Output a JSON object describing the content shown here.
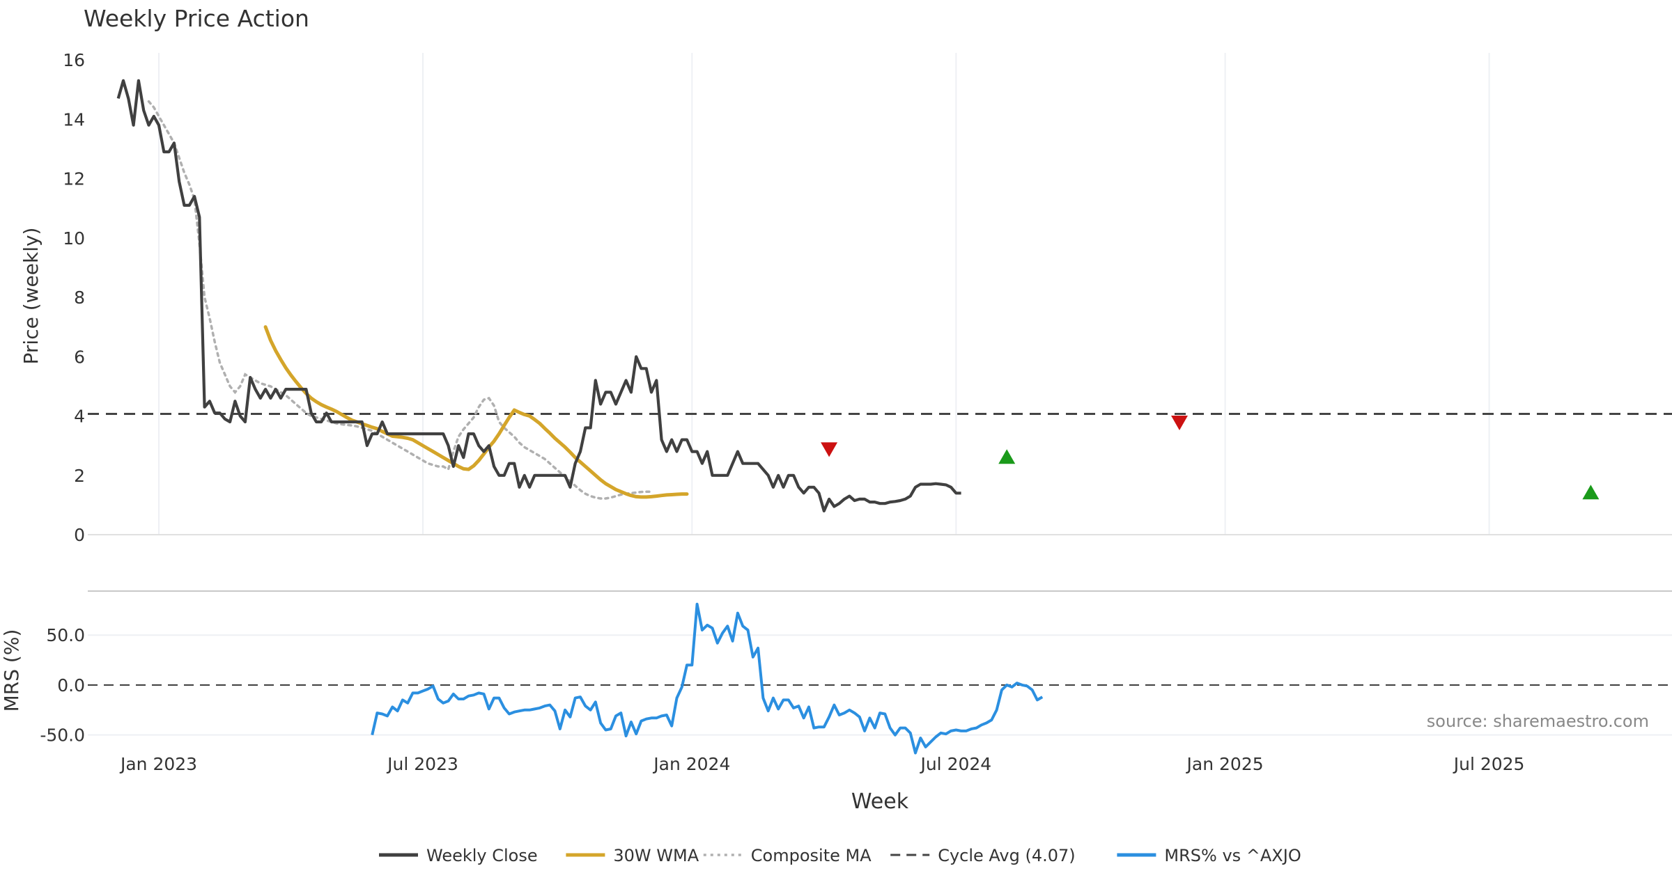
{
  "chart_data": {
    "type": "line",
    "title": "Weekly Price Action",
    "xlabel": "Week",
    "source_note": "source: sharemaestro.com",
    "x_ticks": [
      "Jan 2023",
      "Jul 2023",
      "Jan 2024",
      "Jul 2024",
      "Jan 2025",
      "Jul 2025"
    ],
    "x_tick_weeks": [
      8,
      60,
      113,
      165,
      218,
      270
    ],
    "week_range": [
      -6,
      306
    ],
    "colors": {
      "close": "#404040",
      "wma": "#d4a52a",
      "composite": "#b0b0b0",
      "cycle": "#444444",
      "mrs": "#2b8fe0",
      "buy": "#1a9a1a",
      "sell": "#cc1111",
      "source": "#888888"
    },
    "price_panel": {
      "ylabel": "Price (weekly)",
      "ylim": [
        0,
        16
      ],
      "yticks": [
        "0",
        "2",
        "4",
        "6",
        "8",
        "10",
        "12",
        "14",
        "16"
      ],
      "series": [
        {
          "name": "Weekly Close",
          "values": [
            14.7,
            15.3,
            14.7,
            13.8,
            15.3,
            14.3,
            13.8,
            14.1,
            13.8,
            12.9,
            12.9,
            13.2,
            11.9,
            11.1,
            11.1,
            11.4,
            10.7,
            4.3,
            4.5,
            4.1,
            4.1,
            3.9,
            3.8,
            4.5,
            4.0,
            3.8,
            5.3,
            4.9,
            4.6,
            4.9,
            4.6,
            4.9,
            4.6,
            4.9,
            4.9,
            4.9,
            4.9,
            4.9,
            4.1,
            3.8,
            3.8,
            4.1,
            3.8,
            3.8,
            3.8,
            3.8,
            3.8,
            3.8,
            3.8,
            3.0,
            3.4,
            3.4,
            3.8,
            3.4,
            3.4,
            3.4,
            3.4,
            3.4,
            3.4,
            3.4,
            3.4,
            3.4,
            3.4,
            3.4,
            3.4,
            3.0,
            2.3,
            3.0,
            2.6,
            3.4,
            3.4,
            3.0,
            2.8,
            3.0,
            2.3,
            2.0,
            2.0,
            2.4,
            2.4,
            1.6,
            2.0,
            1.6,
            2.0,
            2.0,
            2.0,
            2.0,
            2.0,
            2.0,
            2.0,
            1.6,
            2.4,
            2.8,
            3.6,
            3.6,
            5.2,
            4.4,
            4.8,
            4.8,
            4.4,
            4.8,
            5.2,
            4.8,
            6.0,
            5.6,
            5.6,
            4.8,
            5.2,
            3.2,
            2.8,
            3.2,
            2.8,
            3.2,
            3.2,
            2.8,
            2.8,
            2.4,
            2.8,
            2.0,
            2.0,
            2.0,
            2.0,
            2.4,
            2.8,
            2.4,
            2.4,
            2.4,
            2.4,
            2.2,
            2.0,
            1.6,
            2.0,
            1.6,
            2.0,
            2.0,
            1.6,
            1.4,
            1.6,
            1.6,
            1.4,
            0.8,
            1.2,
            0.95,
            1.05,
            1.2,
            1.3,
            1.15,
            1.2,
            1.2,
            1.1,
            1.1,
            1.05,
            1.05,
            1.1,
            1.12,
            1.15,
            1.2,
            1.3,
            1.6,
            1.7,
            1.7,
            1.7,
            1.72,
            1.7,
            1.68,
            1.6,
            1.4,
            1.4
          ]
        },
        {
          "name": "30W WMA",
          "start_index": 29,
          "values": [
            7.0,
            6.55,
            6.2,
            5.9,
            5.62,
            5.38,
            5.16,
            4.95,
            4.76,
            4.6,
            4.48,
            4.38,
            4.3,
            4.23,
            4.15,
            4.05,
            3.95,
            3.86,
            3.8,
            3.74,
            3.68,
            3.62,
            3.57,
            3.48,
            3.4,
            3.32,
            3.3,
            3.28,
            3.25,
            3.2,
            3.1,
            3.0,
            2.9,
            2.8,
            2.7,
            2.6,
            2.5,
            2.4,
            2.3,
            2.22,
            2.2,
            2.32,
            2.5,
            2.72,
            2.95,
            3.15,
            3.4,
            3.68,
            3.95,
            4.2,
            4.12,
            4.05,
            4.0,
            3.88,
            3.75,
            3.58,
            3.42,
            3.25,
            3.1,
            2.95,
            2.78,
            2.6,
            2.45,
            2.3,
            2.15,
            2.0,
            1.85,
            1.72,
            1.62,
            1.52,
            1.45,
            1.38,
            1.32,
            1.28,
            1.27,
            1.27,
            1.28,
            1.3,
            1.32,
            1.34,
            1.35,
            1.36,
            1.37,
            1.37
          ]
        },
        {
          "name": "Composite MA",
          "start_index": 6,
          "values": [
            14.6,
            14.4,
            14.1,
            13.8,
            13.5,
            13.2,
            12.7,
            12.2,
            11.8,
            11.3,
            9.8,
            8.0,
            7.3,
            6.5,
            5.8,
            5.4,
            5.0,
            4.8,
            5.0,
            5.4,
            5.3,
            5.2,
            5.1,
            5.05,
            5.0,
            4.9,
            4.8,
            4.7,
            4.55,
            4.4,
            4.25,
            4.1,
            4.0,
            3.95,
            3.9,
            3.85,
            3.8,
            3.75,
            3.72,
            3.7,
            3.68,
            3.65,
            3.6,
            3.55,
            3.5,
            3.4,
            3.3,
            3.2,
            3.1,
            3.0,
            2.9,
            2.8,
            2.7,
            2.6,
            2.5,
            2.4,
            2.35,
            2.3,
            2.3,
            2.2,
            2.8,
            3.3,
            3.55,
            3.75,
            3.95,
            4.3,
            4.55,
            4.6,
            4.35,
            3.8,
            3.6,
            3.45,
            3.3,
            3.1,
            2.95,
            2.85,
            2.75,
            2.65,
            2.55,
            2.4,
            2.25,
            2.1,
            1.95,
            1.8,
            1.65,
            1.5,
            1.38,
            1.3,
            1.25,
            1.22,
            1.22,
            1.25,
            1.3,
            1.35,
            1.38,
            1.4,
            1.42,
            1.44,
            1.45,
            1.45
          ]
        },
        {
          "name": "Cycle Avg (4.07)",
          "constant": 4.07
        }
      ],
      "signals": [
        {
          "type": "sell",
          "week": 140,
          "value": 2.9
        },
        {
          "type": "buy",
          "week": 175,
          "value": 2.6
        },
        {
          "type": "sell",
          "week": 209,
          "value": 3.8
        },
        {
          "type": "buy",
          "week": 290,
          "value": 1.4
        }
      ]
    },
    "mrs_panel": {
      "ylabel": "MRS (%)",
      "ylim": [
        -60,
        85
      ],
      "yticks": [
        "-50.0",
        "0.0",
        "50.0"
      ],
      "series": [
        {
          "name": "MRS% vs ^AXJO",
          "start_index": 50,
          "values": [
            -50,
            -28,
            -29,
            -31,
            -22,
            -26,
            -15,
            -18,
            -8,
            -8,
            -6,
            -4,
            -1,
            -14,
            -18,
            -16,
            -9,
            -14,
            -14,
            -11,
            -10,
            -8,
            -9,
            -24,
            -13,
            -13,
            -23,
            -29,
            -27,
            -26,
            -25,
            -25,
            -24,
            -23,
            -21,
            -20,
            -26,
            -44,
            -25,
            -32,
            -13,
            -12,
            -21,
            -25,
            -17,
            -38,
            -45,
            -44,
            -31,
            -28,
            -51,
            -37,
            -49,
            -36,
            -34,
            -33,
            -33,
            -31,
            -30,
            -41,
            -13,
            -2,
            20,
            20,
            81,
            55,
            60,
            57,
            42,
            52,
            59,
            44,
            72,
            59,
            55,
            28,
            37,
            -13,
            -26,
            -13,
            -24,
            -15,
            -15,
            -23,
            -21,
            -33,
            -22,
            -43,
            -42,
            -42,
            -32,
            -20,
            -30,
            -28,
            -25,
            -28,
            -32,
            -46,
            -33,
            -43,
            -28,
            -29,
            -43,
            -50,
            -43,
            -43,
            -48,
            -68,
            -53,
            -62,
            -57,
            -52,
            -48,
            -49,
            -46,
            -45,
            -46,
            -46,
            -44,
            -43,
            -40,
            -38,
            -35,
            -25,
            -5,
            0,
            -2,
            2,
            0,
            -1,
            -5,
            -15,
            -12
          ]
        }
      ]
    },
    "legend": {
      "position": "bottom-center",
      "items": [
        {
          "label": "Weekly Close",
          "style": "solid-dark"
        },
        {
          "label": "30W WMA",
          "style": "solid-gold"
        },
        {
          "label": "Composite MA",
          "style": "dotted-grey"
        },
        {
          "label": "Cycle Avg (4.07)",
          "style": "dashed-dark"
        },
        {
          "label": "MRS% vs ^AXJO",
          "style": "solid-blue"
        }
      ]
    }
  }
}
